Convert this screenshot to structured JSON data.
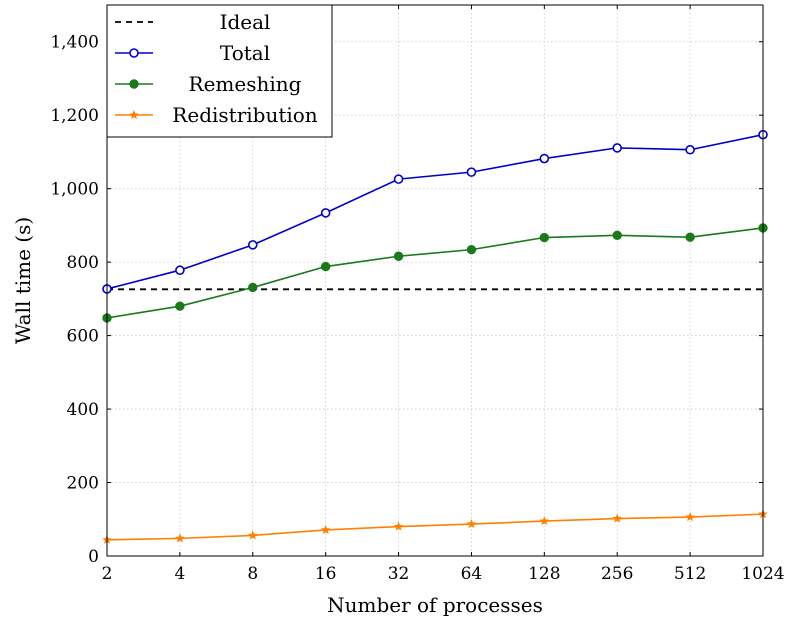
{
  "chart_data": {
    "type": "line",
    "x_scale": "log2",
    "x": [
      2,
      4,
      8,
      16,
      32,
      64,
      128,
      256,
      512,
      1024
    ],
    "xticks": [
      "2",
      "4",
      "8",
      "16",
      "32",
      "64",
      "128",
      "256",
      "512",
      "1024"
    ],
    "ylim": [
      0,
      1500
    ],
    "yticks": [
      0,
      200,
      400,
      600,
      800,
      1000,
      1200,
      1400
    ],
    "ytick_labels": [
      "0",
      "200",
      "400",
      "600",
      "800",
      "1,000",
      "1,200",
      "1,400"
    ],
    "xlabel": "Number of processes",
    "ylabel": "Wall time (s)",
    "grid": true,
    "legend_position": "top-left",
    "series": [
      {
        "name": "Ideal",
        "color": "#000000",
        "marker": "none",
        "dash": true,
        "values": [
          726,
          726,
          726,
          726,
          726,
          726,
          726,
          726,
          726,
          726
        ]
      },
      {
        "name": "Total",
        "color": "#0000cc",
        "marker": "open-circle",
        "values": [
          727,
          778,
          847,
          934,
          1026,
          1045,
          1082,
          1111,
          1106,
          1147
        ]
      },
      {
        "name": "Remeshing",
        "color": "#1a7a1a",
        "marker": "filled-circle",
        "values": [
          648,
          680,
          731,
          788,
          816,
          834,
          867,
          873,
          868,
          893
        ]
      },
      {
        "name": "Redistribution",
        "color": "#ff8000",
        "marker": "star",
        "values": [
          44,
          48,
          56,
          71,
          80,
          87,
          95,
          102,
          106,
          114
        ]
      }
    ]
  }
}
